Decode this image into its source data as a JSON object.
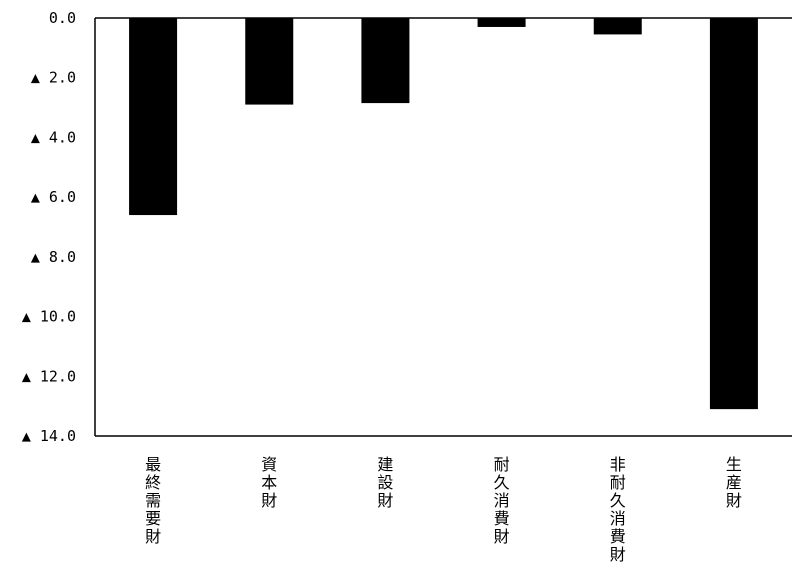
{
  "chart_data": {
    "type": "bar",
    "categories": [
      "最終需要財",
      "資本財",
      "建設財",
      "耐久消費財",
      "非耐久消費財",
      "生産財"
    ],
    "values": [
      -6.6,
      -2.9,
      -2.85,
      -0.3,
      -0.55,
      -13.1
    ],
    "ylim": [
      -14,
      0
    ],
    "ytick_labels": [
      "0.0",
      "▲ 2.0",
      "▲ 4.0",
      "▲ 6.0",
      "▲ 8.0",
      "▲ 10.0",
      "▲ 12.0",
      "▲ 14.0"
    ],
    "grid": false,
    "bar_color": "#000000"
  }
}
